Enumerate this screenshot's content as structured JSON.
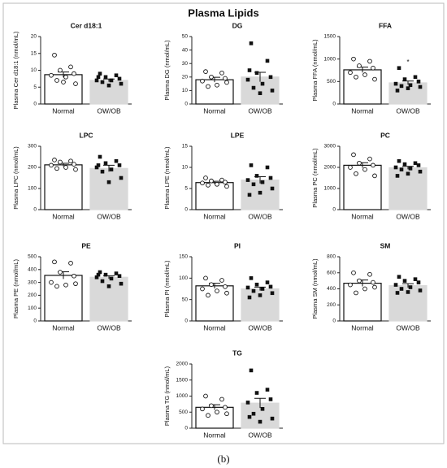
{
  "title": "Plasma Lipids",
  "caption": "(b)",
  "chart_data": [
    {
      "type": "bar",
      "title": "Cer d18:1",
      "ylabel": "Plasma Cer d18:1 (nmol/mL)",
      "categories": [
        "Normal",
        "OW/OB"
      ],
      "values": [
        8.7,
        7.0
      ],
      "errors": [
        0.8,
        0.4
      ],
      "points": [
        [
          14.5,
          11,
          10,
          9,
          8.5,
          8,
          7,
          6,
          6.5
        ],
        [
          9,
          8.5,
          8,
          7.5,
          7,
          7,
          6.5,
          6,
          5.5,
          8
        ]
      ],
      "colors": [
        "#ffffff",
        "#d9d9d9"
      ],
      "ylim": [
        0,
        20
      ],
      "yticks": [
        0,
        5,
        10,
        15,
        20
      ]
    },
    {
      "type": "bar",
      "title": "DG",
      "ylabel": "Plasma DG (nmol/mL)",
      "categories": [
        "Normal",
        "OW/OB"
      ],
      "values": [
        18,
        20
      ],
      "errors": [
        1.8,
        3.5
      ],
      "points": [
        [
          24,
          23,
          20,
          19,
          17,
          14,
          13,
          16
        ],
        [
          45,
          32,
          23,
          20,
          18,
          15,
          12,
          10,
          8,
          25
        ]
      ],
      "colors": [
        "#ffffff",
        "#d9d9d9"
      ],
      "ylim": [
        0,
        50
      ],
      "yticks": [
        0,
        10,
        20,
        30,
        40,
        50
      ]
    },
    {
      "type": "bar",
      "title": "FFA",
      "ylabel": "Plasma FFA (nmol/mL)",
      "categories": [
        "Normal",
        "OW/OB"
      ],
      "values": [
        760,
        470
      ],
      "errors": [
        60,
        40
      ],
      "points": [
        [
          1000,
          950,
          850,
          800,
          700,
          650,
          600,
          550
        ],
        [
          800,
          600,
          550,
          500,
          450,
          420,
          400,
          380,
          350,
          300
        ]
      ],
      "colors": [
        "#ffffff",
        "#d9d9d9"
      ],
      "ylim": [
        0,
        1500
      ],
      "yticks": [
        0,
        500,
        1000,
        1500
      ],
      "annotation": "*"
    },
    {
      "type": "bar",
      "title": "LPC",
      "ylabel": "Plasma LPC (nmol/mL)",
      "categories": [
        "Normal",
        "OW/OB"
      ],
      "values": [
        212,
        195
      ],
      "errors": [
        7,
        15
      ],
      "points": [
        [
          235,
          230,
          225,
          215,
          210,
          200,
          195,
          190
        ],
        [
          250,
          230,
          220,
          210,
          200,
          190,
          180,
          150,
          130,
          210
        ]
      ],
      "colors": [
        "#ffffff",
        "#d9d9d9"
      ],
      "ylim": [
        0,
        300
      ],
      "yticks": [
        0,
        100,
        200,
        300
      ]
    },
    {
      "type": "bar",
      "title": "LPE",
      "ylabel": "Plasma LPE (nmol/mL)",
      "categories": [
        "Normal",
        "OW/OB"
      ],
      "values": [
        6.4,
        7.0
      ],
      "errors": [
        0.3,
        0.8
      ],
      "points": [
        [
          7.5,
          7,
          6.8,
          6.5,
          6.3,
          6,
          5.8,
          5.5
        ],
        [
          10.5,
          10,
          8,
          7.5,
          7,
          6.5,
          6,
          5,
          4,
          3.5
        ]
      ],
      "colors": [
        "#ffffff",
        "#d9d9d9"
      ],
      "ylim": [
        0,
        15
      ],
      "yticks": [
        0,
        5,
        10,
        15
      ]
    },
    {
      "type": "bar",
      "title": "PC",
      "ylabel": "Plasma PC (nmol/mL)",
      "categories": [
        "Normal",
        "OW/OB"
      ],
      "values": [
        2100,
        1980
      ],
      "errors": [
        120,
        70
      ],
      "points": [
        [
          2600,
          2400,
          2200,
          2100,
          2000,
          1900,
          1700,
          1600
        ],
        [
          2300,
          2200,
          2150,
          2100,
          2000,
          1950,
          1900,
          1800,
          1700,
          1600
        ]
      ],
      "colors": [
        "#ffffff",
        "#d9d9d9"
      ],
      "ylim": [
        0,
        3000
      ],
      "yticks": [
        0,
        1000,
        2000,
        3000
      ]
    },
    {
      "type": "bar",
      "title": "PE",
      "ylabel": "Plasma PE (nmol/mL)",
      "categories": [
        "Normal",
        "OW/OB"
      ],
      "values": [
        355,
        340
      ],
      "errors": [
        28,
        12
      ],
      "points": [
        [
          460,
          450,
          380,
          350,
          300,
          280,
          270,
          290
        ],
        [
          380,
          370,
          360,
          350,
          340,
          330,
          310,
          290,
          270,
          360
        ]
      ],
      "colors": [
        "#ffffff",
        "#d9d9d9"
      ],
      "ylim": [
        0,
        500
      ],
      "yticks": [
        0,
        100,
        200,
        300,
        400,
        500
      ]
    },
    {
      "type": "bar",
      "title": "PI",
      "ylabel": "Plasma PI (nmol/mL)",
      "categories": [
        "Normal",
        "OW/OB"
      ],
      "values": [
        82,
        75
      ],
      "errors": [
        6,
        4
      ],
      "points": [
        [
          100,
          95,
          85,
          80,
          75,
          70,
          60,
          65
        ],
        [
          100,
          90,
          85,
          80,
          78,
          75,
          70,
          65,
          60,
          55
        ]
      ],
      "colors": [
        "#ffffff",
        "#d9d9d9"
      ],
      "ylim": [
        0,
        150
      ],
      "yticks": [
        0,
        50,
        100,
        150
      ]
    },
    {
      "type": "bar",
      "title": "SM",
      "ylabel": "Plasma SM (nmol/mL)",
      "categories": [
        "Normal",
        "OW/OB"
      ],
      "values": [
        470,
        440
      ],
      "errors": [
        40,
        25
      ],
      "points": [
        [
          600,
          580,
          500,
          480,
          450,
          400,
          350,
          420
        ],
        [
          550,
          520,
          500,
          480,
          450,
          420,
          400,
          380,
          360,
          350
        ]
      ],
      "colors": [
        "#ffffff",
        "#d9d9d9"
      ],
      "ylim": [
        0,
        800
      ],
      "yticks": [
        0,
        200,
        400,
        600,
        800
      ]
    },
    {
      "type": "bar",
      "title": "TG",
      "ylabel": "Plasma TG (nmol/mL)",
      "categories": [
        "Normal",
        "OW/OB"
      ],
      "values": [
        650,
        780
      ],
      "errors": [
        80,
        150
      ],
      "points": [
        [
          1000,
          900,
          700,
          650,
          600,
          500,
          400,
          450
        ],
        [
          1800,
          1200,
          1100,
          900,
          800,
          600,
          450,
          300,
          200,
          350
        ]
      ],
      "colors": [
        "#ffffff",
        "#d9d9d9"
      ],
      "ylim": [
        0,
        2000
      ],
      "yticks": [
        0,
        500,
        1000,
        1500,
        2000
      ]
    }
  ]
}
